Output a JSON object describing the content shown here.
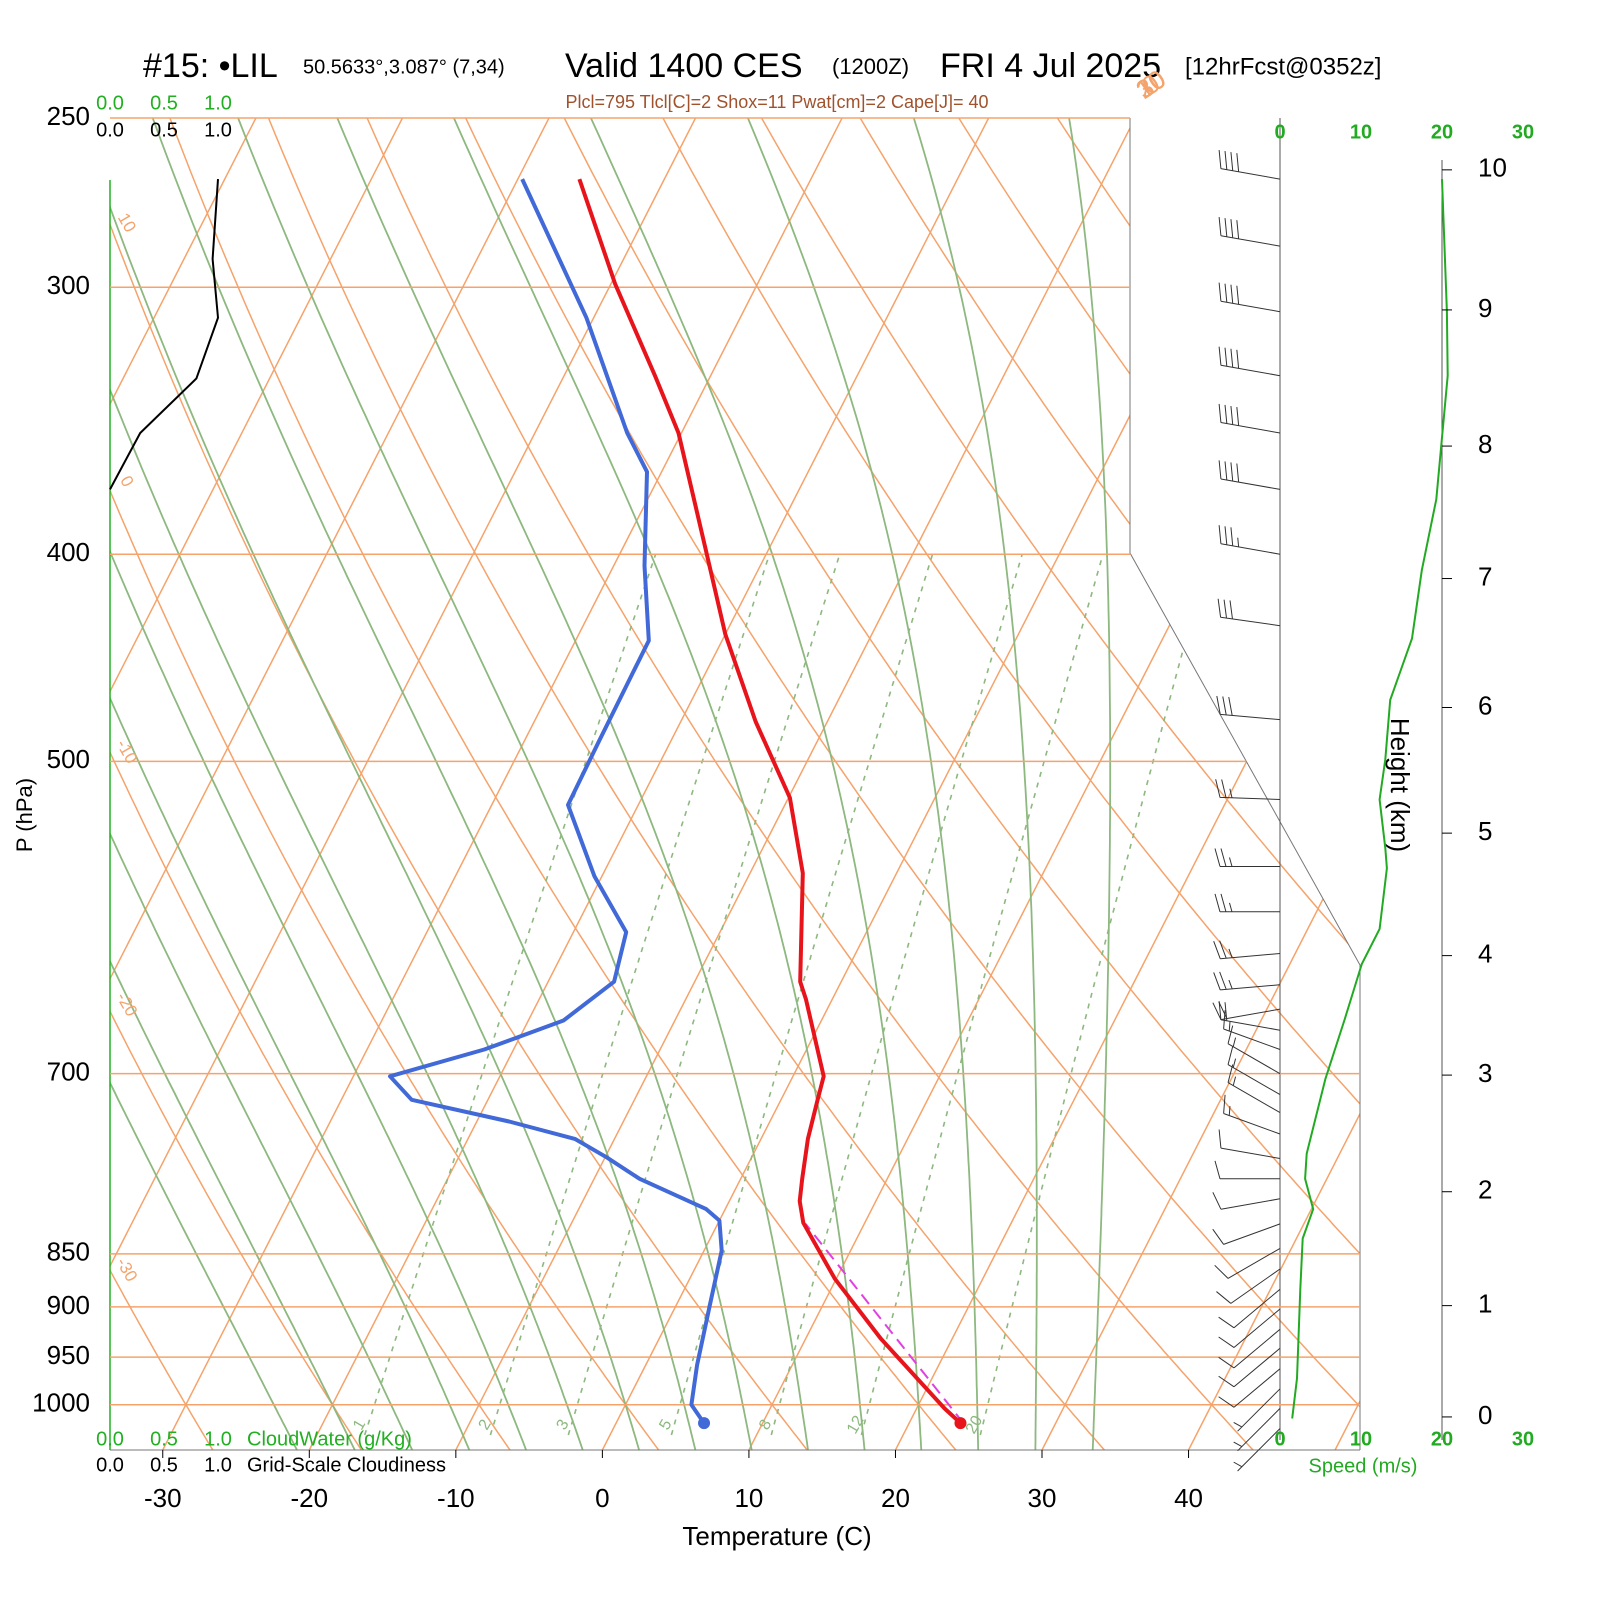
{
  "chart_data": {
    "type": "skewt",
    "title": {
      "station": "#15: •LIL",
      "coords": "50.5633°,3.087° (7,34)",
      "valid": "Valid 1400 CES",
      "utc": "(1200Z)",
      "date": "FRI 4 Jul 2025",
      "forecast": "[12hrFcst@0352z]"
    },
    "subtitle": "Plcl=795 Tlcl[C]=2 Shox=11 Pwat[cm]=2 Cape[J]= 40",
    "xlabel": "Temperature (C)",
    "ylabel": "P (hPa)",
    "xlim": [
      -33.6,
      51.7
    ],
    "xticks": [
      -30,
      -20,
      -10,
      0,
      10,
      20,
      30,
      40
    ],
    "ylim": [
      1050,
      250
    ],
    "yticks": [
      250,
      300,
      400,
      500,
      700,
      850,
      900,
      950,
      1000
    ],
    "log_y": true,
    "grid_color": "#f5a36b",
    "series": [
      {
        "color": "#e8141c",
        "pressure": [
          1020,
          1004,
          931,
          873,
          822,
          803,
          784,
          751,
          720,
          702,
          646,
          634,
          564,
          520,
          479,
          436,
          397,
          351,
          330,
          299,
          267
        ],
        "values": [
          23.5,
          21.9,
          15.1,
          9.9,
          5.8,
          4.8,
          4.2,
          3.2,
          2.5,
          2.1,
          -1.8,
          -2.8,
          -6.4,
          -9.9,
          -14.9,
          -20.0,
          -24.4,
          -30.2,
          -33.8,
          -39.7,
          -45.8
        ]
      },
      {
        "color": "#4169d8",
        "pressure": [
          1020,
          1000,
          958,
          894,
          847,
          820,
          810,
          784,
          766,
          751,
          737,
          720,
          702,
          682,
          661,
          634,
          601,
          566,
          524,
          489,
          439,
          405,
          366,
          351,
          310,
          267
        ],
        "values": [
          6.0,
          4.5,
          3.5,
          2.2,
          1.2,
          0.0,
          -1.3,
          -6.9,
          -9.9,
          -12.7,
          -17.8,
          -25.2,
          -27.5,
          -22.0,
          -17.6,
          -15.5,
          -16.4,
          -20.5,
          -24.8,
          -24.9,
          -25.0,
          -27.9,
          -31.0,
          -33.7,
          -40.5,
          -49.7
        ]
      }
    ],
    "parcel": {
      "color": "#e040e0",
      "pressure": [
        1020,
        823
      ],
      "values": [
        23.7,
        6.0
      ]
    },
    "isotherms": [
      -80,
      -70,
      -60,
      -50,
      -40,
      -30,
      -20,
      -10,
      0,
      10,
      20,
      30,
      40,
      50
    ],
    "isotherm_labels": [
      0,
      10,
      20,
      30
    ],
    "dry_adiabats": [
      -30,
      -20,
      -10,
      0,
      10,
      20,
      30,
      40,
      50,
      60,
      70,
      80,
      90,
      100,
      110,
      120
    ],
    "moist_adiabats": [
      -24,
      -20,
      -16,
      -12,
      -8,
      -4,
      0,
      4,
      8,
      12,
      16,
      20,
      24,
      28,
      32
    ],
    "moist_color": "#8db87f",
    "mixing_ratios": [
      1,
      2,
      3,
      5,
      8,
      12,
      20
    ],
    "cloud_water": {
      "label": "CloudWater (g/Kg)",
      "color": "#22b022",
      "xlim": [
        0,
        1
      ],
      "xticks": [
        {
          "value": 0,
          "label": "0.0"
        },
        {
          "value": 0.5,
          "label": "0.5"
        },
        {
          "value": 1,
          "label": "1.0"
        }
      ]
    },
    "cloudiness": {
      "label": "Grid-Scale Cloudiness",
      "color": "#000000",
      "xlim": [
        0,
        1
      ],
      "xticks": [
        {
          "value": 0,
          "label": "0.0"
        },
        {
          "value": 0.5,
          "label": "0.5"
        },
        {
          "value": 1,
          "label": "1.0"
        }
      ],
      "pressure": [
        267,
        291,
        310,
        331,
        351,
        373
      ],
      "values": [
        1.0,
        0.95,
        1.0,
        0.8,
        0.28,
        0
      ]
    },
    "speed": {
      "label": "Speed (m/s)",
      "color": "#22aa22",
      "xlim": [
        0,
        30
      ],
      "xticks": [
        0,
        10,
        20,
        30
      ],
      "pressure": [
        1015,
        972,
        883,
        836,
        810,
        784,
        763,
        704,
        660,
        622,
        599,
        561,
        549,
        521,
        499,
        468,
        438,
        407,
        377,
        330,
        308,
        267
      ],
      "values": [
        1.5,
        2.1,
        2.5,
        2.8,
        4.1,
        3.1,
        3.3,
        5.6,
        8.0,
        10.1,
        12.3,
        13.2,
        13.0,
        12.3,
        13.0,
        13.6,
        16.3,
        17.5,
        19.3,
        20.7,
        20.6,
        20.0
      ]
    },
    "height": {
      "label": "Height (km)",
      "ticks": [
        0,
        1,
        2,
        3,
        4,
        5,
        6,
        7,
        8,
        9,
        10
      ]
    },
    "wind_barbs": {
      "pressure": [
        267,
        287,
        308,
        330,
        351,
        373,
        400,
        432,
        478,
        521,
        560,
        588,
        615,
        636,
        653,
        668,
        682,
        700,
        716,
        730,
        747,
        767,
        784,
        801,
        823,
        845,
        864,
        883,
        902,
        922,
        941,
        962,
        983,
        1004,
        1026
      ],
      "speed": [
        40,
        40,
        40,
        40,
        40,
        40,
        35,
        30,
        30,
        25,
        25,
        25,
        25,
        25,
        20,
        20,
        15,
        15,
        15,
        15,
        15,
        10,
        10,
        10,
        10,
        10,
        10,
        10,
        10,
        10,
        10,
        10,
        5,
        5,
        5
      ],
      "direction": [
        280,
        280,
        280,
        280,
        280,
        280,
        280,
        278,
        275,
        272,
        270,
        270,
        265,
        265,
        260,
        280,
        290,
        300,
        300,
        300,
        290,
        280,
        270,
        260,
        250,
        240,
        235,
        230,
        230,
        230,
        230,
        230,
        225,
        225,
        225
      ]
    }
  }
}
